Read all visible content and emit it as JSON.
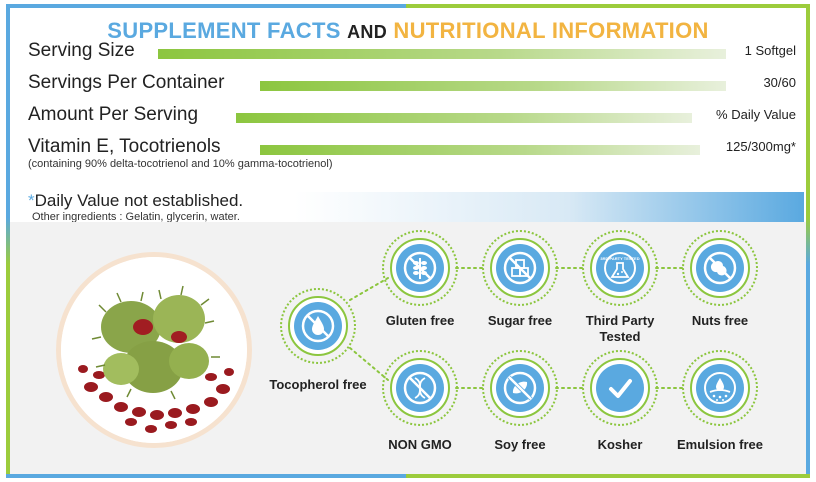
{
  "header": {
    "part1": "SUPPLEMENT FACTS",
    "part2": "AND",
    "part3": "NUTRITIONAL INFORMATION"
  },
  "facts": [
    {
      "label": "Serving Size",
      "value": "1 Softgel"
    },
    {
      "label": "Servings Per Container",
      "value": "30/60"
    },
    {
      "label": "Amount Per Serving",
      "value": "% Daily Value"
    },
    {
      "label": "Vitamin E, Tocotrienols",
      "value": "125/300mg*"
    }
  ],
  "composition_note": "(containing 90% delta-tocotrienol and 10% gamma-tocotrienol)",
  "daily_value_note": {
    "star": "*",
    "text": "Daily Value not established."
  },
  "other_ingredients": "Other ingredients : Gelatin, glycerin, water.",
  "badges": [
    {
      "name": "tocopherol-free",
      "icon": "water-drop-icon",
      "label": "Tocopherol free"
    },
    {
      "name": "gluten-free",
      "icon": "wheat-icon",
      "label": "Gluten free"
    },
    {
      "name": "sugar-free",
      "icon": "sugar-cubes-icon",
      "label": "Sugar free"
    },
    {
      "name": "third-party-tested",
      "icon": "flask-icon",
      "label": "Third Party Tested",
      "icon_text": "3RD PARTY TESTED"
    },
    {
      "name": "nuts-free",
      "icon": "peanut-icon",
      "label": "Nuts free"
    },
    {
      "name": "non-gmo",
      "icon": "dna-icon",
      "label": "NON GMO"
    },
    {
      "name": "soy-free",
      "icon": "soybean-icon",
      "label": "Soy free"
    },
    {
      "name": "kosher",
      "icon": "checkmark-icon",
      "label": "Kosher"
    },
    {
      "name": "emulsion-free",
      "icon": "emulsion-icon",
      "label": "Emulsion free"
    }
  ],
  "colors": {
    "blue": "#5aa9e0",
    "green": "#8cc63f",
    "orange": "#f2b441"
  }
}
